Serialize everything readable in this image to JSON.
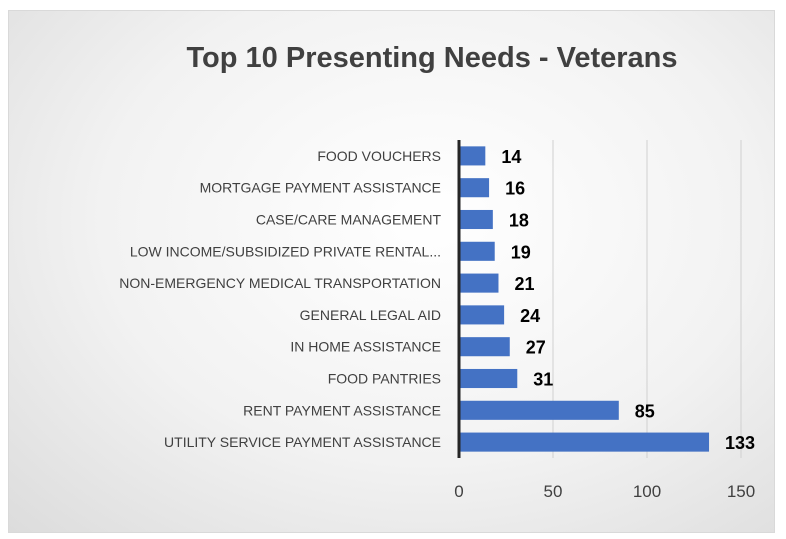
{
  "chart_data": {
    "type": "bar",
    "orientation": "horizontal",
    "title": "Top 10 Presenting Needs - Veterans",
    "xlabel": "",
    "ylabel": "",
    "xlim": [
      0,
      150
    ],
    "xticks": [
      "0",
      "50",
      "100",
      "150"
    ],
    "grid": true,
    "legend": "none",
    "bar_color": "#4472c4",
    "categories": [
      "FOOD VOUCHERS",
      "MORTGAGE PAYMENT ASSISTANCE",
      "CASE/CARE MANAGEMENT",
      "LOW INCOME/SUBSIDIZED PRIVATE RENTAL...",
      "NON-EMERGENCY MEDICAL TRANSPORTATION",
      "GENERAL LEGAL AID",
      "IN HOME ASSISTANCE",
      "FOOD PANTRIES",
      "RENT PAYMENT ASSISTANCE",
      "UTILITY SERVICE PAYMENT ASSISTANCE"
    ],
    "values": [
      14,
      16,
      18,
      19,
      21,
      24,
      27,
      31,
      85,
      133
    ]
  }
}
